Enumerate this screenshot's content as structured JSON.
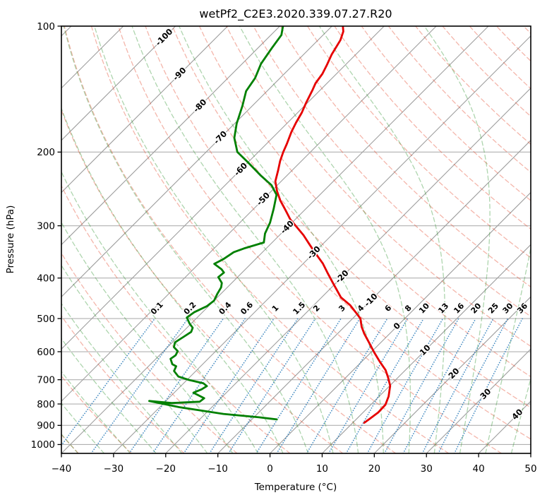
{
  "title": "wetPf2_C2E3.2020.339.07.27.R20",
  "axes": {
    "x_label": "Temperature (°C)",
    "y_label": "Pressure (hPa)"
  },
  "colors": {
    "temperature_line": "#e60000",
    "dewpoint_line": "#008000",
    "isobar": "#b0b0b0",
    "isotherm": "#9e9e9e",
    "dry_adiabat": "rgba(228,82,56,0.42)",
    "moist_adiabat": "rgba(52,150,52,0.40)",
    "mixing_line": "rgba(45,125,186,0.85)",
    "label_blue": "#1f77b4",
    "label_gray": "#7f7f7f",
    "label_red": "#d62728",
    "axis": "#000000"
  },
  "chart_data": {
    "type": "line",
    "subtype": "skew-T log-p sounding",
    "skew_deg": 45,
    "xlabel": "Temperature (°C)",
    "ylabel": "Pressure (hPa)",
    "x_range_c": [
      -40,
      50
    ],
    "p_range_hpa": [
      100,
      1050
    ],
    "grid": true,
    "x_ticks": [
      {
        "v": -40,
        "label": "−40"
      },
      {
        "v": -30,
        "label": "−30"
      },
      {
        "v": -20,
        "label": "−20"
      },
      {
        "v": -10,
        "label": "−10"
      },
      {
        "v": 0,
        "label": "0"
      },
      {
        "v": 10,
        "label": "10"
      },
      {
        "v": 20,
        "label": "20"
      },
      {
        "v": 30,
        "label": "30"
      },
      {
        "v": 40,
        "label": "40"
      },
      {
        "v": 50,
        "label": "50"
      }
    ],
    "y_ticks": [
      {
        "v": 100,
        "label": "100"
      },
      {
        "v": 200,
        "label": "200"
      },
      {
        "v": 300,
        "label": "300"
      },
      {
        "v": 400,
        "label": "400"
      },
      {
        "v": 500,
        "label": "500"
      },
      {
        "v": 600,
        "label": "600"
      },
      {
        "v": 700,
        "label": "700"
      },
      {
        "v": 800,
        "label": "800"
      },
      {
        "v": 900,
        "label": "900"
      },
      {
        "v": 1000,
        "label": "1000"
      }
    ],
    "p_gridlines": [
      100,
      200,
      300,
      400,
      500,
      600,
      700,
      800,
      900,
      1000
    ],
    "isotherms_c": {
      "from": -120,
      "to": 50,
      "step": 10
    },
    "dry_adiabats_c": {
      "from": -40,
      "to": 200,
      "step": 10
    },
    "moist_adiabats_c": {
      "from": -40,
      "to": 45,
      "step": 5
    },
    "mixing_ratio_g_kg": [
      0.1,
      0.2,
      0.4,
      0.6,
      1,
      1.5,
      2,
      3,
      4,
      6,
      8,
      10,
      13,
      16,
      20,
      25,
      30,
      36
    ],
    "mixing_ratio_labels": [
      {
        "text": "0.1"
      },
      {
        "text": "0.2"
      },
      {
        "text": "0.4"
      },
      {
        "text": "0.6"
      },
      {
        "text": "1"
      },
      {
        "text": "1.5"
      },
      {
        "text": "2"
      },
      {
        "text": "3"
      },
      {
        "text": "4"
      },
      {
        "text": "6"
      },
      {
        "text": "8"
      },
      {
        "text": "10"
      },
      {
        "text": "13"
      },
      {
        "text": "16"
      },
      {
        "text": "20"
      },
      {
        "text": "25"
      },
      {
        "text": "30"
      },
      {
        "text": "36"
      }
    ],
    "isotherm_labels": [
      {
        "t": -100,
        "y": 53,
        "text": "-100"
      },
      {
        "t": -90,
        "y": 105,
        "text": "-90"
      },
      {
        "t": -80,
        "y": 150,
        "text": "-80"
      },
      {
        "t": -70,
        "y": 195,
        "text": "-70"
      },
      {
        "t": -60,
        "y": 240,
        "text": "-60"
      },
      {
        "t": -50,
        "y": 282,
        "text": "-50"
      },
      {
        "t": -40,
        "y": 322,
        "text": "-40"
      },
      {
        "t": -30,
        "y": 358,
        "text": "-30"
      },
      {
        "t": -20,
        "y": 392,
        "text": "-20"
      },
      {
        "t": -10,
        "y": 425,
        "text": "-10"
      },
      {
        "t": 0,
        "y": 462,
        "text": "0"
      },
      {
        "t": 10,
        "y": 496,
        "text": "10"
      },
      {
        "t": 20,
        "y": 529,
        "text": "20"
      },
      {
        "t": 30,
        "y": 558,
        "text": "30"
      },
      {
        "t": 40,
        "y": 587,
        "text": "40"
      }
    ],
    "series": [
      {
        "name": "temperature",
        "color": "#e60000",
        "points_p_t": [
          [
            100,
            -67.9
          ],
          [
            103,
            -66.8
          ],
          [
            108,
            -65.7
          ],
          [
            117,
            -64.6
          ],
          [
            124,
            -63.5
          ],
          [
            130,
            -62.7
          ],
          [
            137,
            -62.2
          ],
          [
            142,
            -61.5
          ],
          [
            153,
            -60.2
          ],
          [
            161,
            -59.2
          ],
          [
            170,
            -58.4
          ],
          [
            179,
            -57.5
          ],
          [
            191,
            -56.1
          ],
          [
            200,
            -55.2
          ],
          [
            210,
            -54.1
          ],
          [
            221,
            -52.7
          ],
          [
            235,
            -51.1
          ],
          [
            248,
            -48.9
          ],
          [
            261,
            -46.5
          ],
          [
            275,
            -43.7
          ],
          [
            290,
            -40.9
          ],
          [
            301,
            -38.5
          ],
          [
            316,
            -35.4
          ],
          [
            334,
            -32.2
          ],
          [
            351,
            -29.3
          ],
          [
            369,
            -26.3
          ],
          [
            390,
            -23.4
          ],
          [
            411,
            -20.6
          ],
          [
            445,
            -16.3
          ],
          [
            464,
            -13.1
          ],
          [
            483,
            -10.6
          ],
          [
            500,
            -8.5
          ],
          [
            523,
            -6.7
          ],
          [
            543,
            -4.9
          ],
          [
            571,
            -2.2
          ],
          [
            602,
            0.6
          ],
          [
            633,
            3.4
          ],
          [
            664,
            6.2
          ],
          [
            690,
            8.0
          ],
          [
            724,
            10.1
          ],
          [
            767,
            11.8
          ],
          [
            803,
            12.8
          ],
          [
            838,
            12.9
          ],
          [
            867,
            12.5
          ],
          [
            887,
            12.2
          ]
        ]
      },
      {
        "name": "dewpoint",
        "color": "#008000",
        "points_p_t": [
          [
            100,
            -79.4
          ],
          [
            105,
            -78.0
          ],
          [
            113,
            -77.3
          ],
          [
            123,
            -76.4
          ],
          [
            133,
            -74.8
          ],
          [
            143,
            -74.0
          ],
          [
            155,
            -71.9
          ],
          [
            171,
            -69.6
          ],
          [
            185,
            -67.3
          ],
          [
            200,
            -64.0
          ],
          [
            211,
            -60.2
          ],
          [
            227,
            -55.2
          ],
          [
            240,
            -51.1
          ],
          [
            253,
            -48.3
          ],
          [
            273,
            -46.2
          ],
          [
            295,
            -44.2
          ],
          [
            313,
            -43.1
          ],
          [
            329,
            -41.6
          ],
          [
            340,
            -44.3
          ],
          [
            347,
            -45.5
          ],
          [
            361,
            -46.2
          ],
          [
            370,
            -47.0
          ],
          [
            381,
            -44.6
          ],
          [
            388,
            -43.5
          ],
          [
            398,
            -43.7
          ],
          [
            411,
            -41.9
          ],
          [
            421,
            -41.2
          ],
          [
            436,
            -40.7
          ],
          [
            453,
            -40.0
          ],
          [
            467,
            -40.3
          ],
          [
            483,
            -41.6
          ],
          [
            497,
            -42.0
          ],
          [
            514,
            -40.3
          ],
          [
            526,
            -38.9
          ],
          [
            538,
            -38.4
          ],
          [
            553,
            -38.9
          ],
          [
            570,
            -39.5
          ],
          [
            585,
            -38.8
          ],
          [
            598,
            -37.3
          ],
          [
            612,
            -36.9
          ],
          [
            624,
            -37.2
          ],
          [
            643,
            -35.8
          ],
          [
            650,
            -34.7
          ],
          [
            667,
            -34.2
          ],
          [
            688,
            -32.3
          ],
          [
            701,
            -29.6
          ],
          [
            714,
            -26.2
          ],
          [
            725,
            -25.0
          ],
          [
            738,
            -25.4
          ],
          [
            752,
            -26.3
          ],
          [
            766,
            -24.4
          ],
          [
            775,
            -23.2
          ],
          [
            790,
            -23.4
          ],
          [
            796,
            -28.5
          ],
          [
            787,
            -33.2
          ],
          [
            814,
            -26.3
          ],
          [
            845,
            -16.5
          ],
          [
            861,
            -9.0
          ],
          [
            871,
            -5.2
          ]
        ]
      }
    ]
  }
}
